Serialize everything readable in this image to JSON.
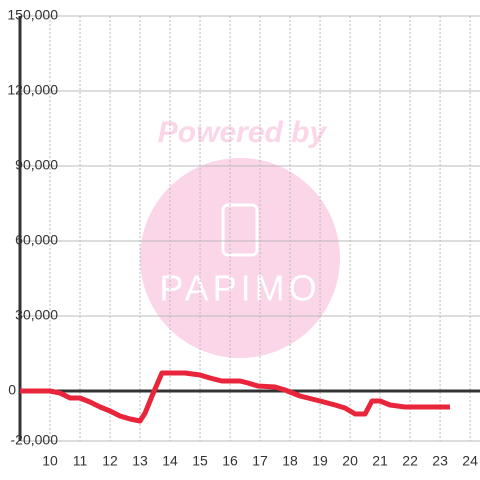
{
  "chart_data": {
    "type": "line",
    "watermark": {
      "line1": "Powered by",
      "line2": "PAPIMO"
    },
    "x": [
      9,
      10,
      10.33,
      10.67,
      11,
      11.33,
      11.67,
      12,
      12.33,
      12.67,
      13,
      13.17,
      13.4,
      13.73,
      14.5,
      15,
      15.33,
      15.73,
      16.33,
      16.6,
      16.93,
      17.5,
      17.83,
      18.33,
      19,
      19.5,
      19.83,
      20.17,
      20.5,
      20.73,
      21,
      21.33,
      21.83,
      23.33
    ],
    "series": [
      {
        "color": "#e8253b",
        "values": [
          0,
          0,
          -800,
          -2800,
          -2800,
          -4400,
          -6400,
          -8000,
          -10000,
          -11200,
          -12000,
          -8800,
          -2000,
          7200,
          7200,
          6400,
          5200,
          4000,
          4000,
          3200,
          2000,
          1600,
          400,
          -2000,
          -4000,
          -5600,
          -6800,
          -9200,
          -9200,
          -4000,
          -4000,
          -5600,
          -6400,
          -6400
        ]
      }
    ],
    "xlim": [
      9,
      24.33
    ],
    "xticks": [
      10,
      11,
      12,
      13,
      14,
      15,
      16,
      17,
      18,
      19,
      20,
      21,
      22,
      23,
      24
    ],
    "ylim": [
      -20000,
      150000
    ],
    "yticks": [
      {
        "value": -20000,
        "label": "-20,000"
      },
      0,
      {
        "value": 30000,
        "label": "30,000"
      },
      {
        "value": 60000,
        "label": "60,000"
      },
      {
        "value": 90000,
        "label": "90,000"
      },
      {
        "value": 120000,
        "label": "120,000"
      },
      {
        "value": 150000,
        "label": "150,000"
      }
    ],
    "grid": true
  }
}
